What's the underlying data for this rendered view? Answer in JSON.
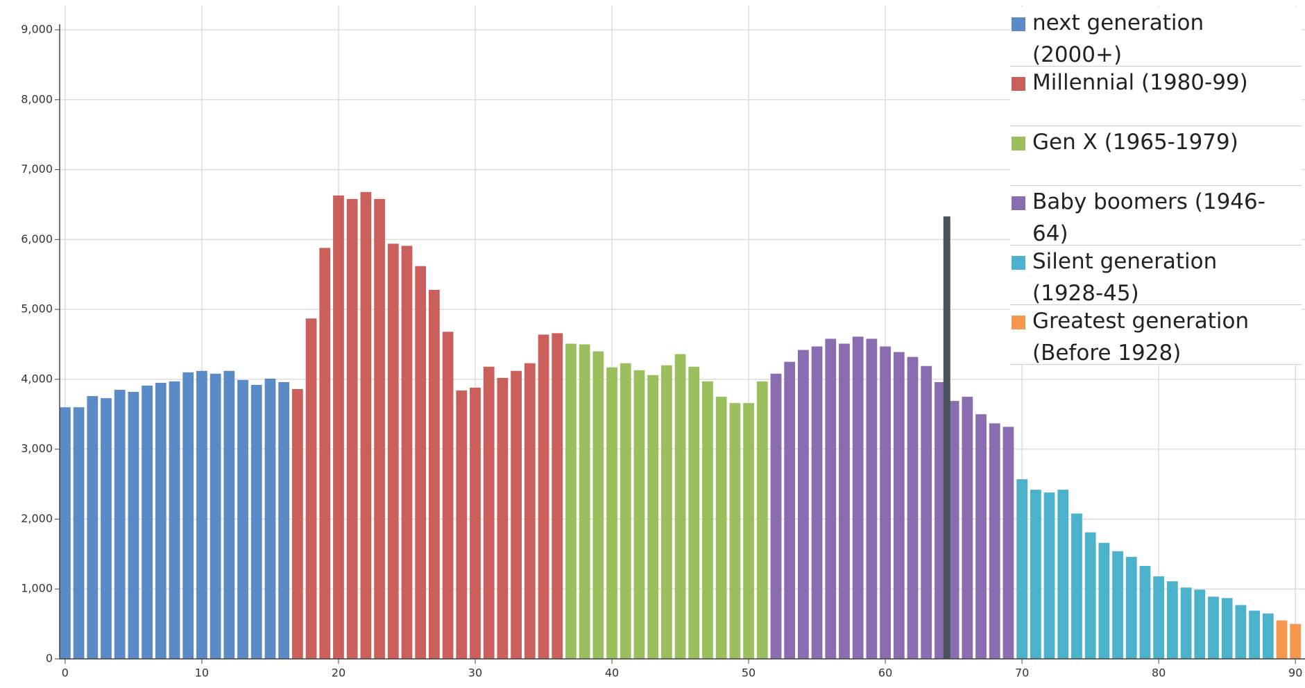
{
  "chart_data": {
    "type": "bar",
    "xlim": [
      -0.4,
      90.7
    ],
    "xticks": [
      0,
      10,
      20,
      30,
      40,
      50,
      60,
      70,
      80,
      90
    ],
    "ylim": [
      0,
      9000
    ],
    "yticks": [
      0,
      {
        "value": 1000,
        "label": "1,000"
      },
      {
        "value": 2000,
        "label": "2,000"
      },
      {
        "value": 3000,
        "label": "3,000"
      },
      {
        "value": 4000,
        "label": "4,000"
      },
      {
        "value": 5000,
        "label": "5,000"
      },
      {
        "value": 6000,
        "label": "6,000"
      },
      {
        "value": 7000,
        "label": "7,000"
      },
      {
        "value": 8000,
        "label": "8,000"
      },
      {
        "value": 9000,
        "label": "9,000"
      }
    ],
    "grid": true,
    "series": [
      {
        "name": "next generation (2000+)",
        "color": "#5b8bc6",
        "x": [
          0,
          1,
          2,
          3,
          4,
          5,
          6,
          7,
          8,
          9,
          10,
          11,
          12,
          13,
          14,
          15,
          16
        ],
        "values": [
          3600,
          3600,
          3760,
          3730,
          3850,
          3820,
          3910,
          3950,
          3970,
          4100,
          4120,
          4080,
          4120,
          3990,
          3920,
          4010,
          3960
        ]
      },
      {
        "name": "Millennial (1980-99)",
        "color": "#cb5f5c",
        "x": [
          17,
          18,
          19,
          20,
          21,
          22,
          23,
          24,
          25,
          26,
          27,
          28,
          29,
          30,
          31,
          32,
          33,
          34,
          35,
          36
        ],
        "values": [
          3860,
          4870,
          5880,
          6630,
          6580,
          6680,
          6580,
          5940,
          5910,
          5620,
          5280,
          4680,
          3840,
          3880,
          4180,
          4020,
          4120,
          4230,
          4640,
          4660
        ]
      },
      {
        "name": "Gen X (1965-1979)",
        "color": "#9cbf5e",
        "x": [
          37,
          38,
          39,
          40,
          41,
          42,
          43,
          44,
          45,
          46,
          47,
          48,
          49,
          50,
          51
        ],
        "values": [
          4510,
          4500,
          4400,
          4170,
          4230,
          4130,
          4060,
          4200,
          4360,
          4180,
          3970,
          3750,
          3660,
          3660,
          3970
        ]
      },
      {
        "name": "Baby boomers (1946-64)",
        "color": "#8a6db0",
        "x": [
          52,
          53,
          54,
          55,
          56,
          57,
          58,
          59,
          60,
          61,
          62,
          63,
          64,
          65,
          66,
          67,
          68,
          69
        ],
        "values": [
          4080,
          4250,
          4420,
          4470,
          4580,
          4510,
          4610,
          4580,
          4470,
          4390,
          4320,
          4190,
          3960,
          3690,
          3750,
          3500,
          3370,
          3320
        ]
      },
      {
        "name": "Silent generation (1928-45)",
        "color": "#4cb1cb",
        "x": [
          70,
          71,
          72,
          73,
          74,
          75,
          76,
          77,
          78,
          79,
          80,
          81,
          82,
          83,
          84,
          85,
          86,
          87,
          88
        ],
        "values": [
          2570,
          2420,
          2380,
          2420,
          2080,
          1810,
          1660,
          1540,
          1460,
          1330,
          1180,
          1110,
          1020,
          990,
          890,
          870,
          770,
          690,
          650
        ]
      },
      {
        "name": "Greatest generation (Before 1928)",
        "color": "#f7974d",
        "x": [
          89,
          90
        ],
        "values": [
          550,
          500
        ]
      }
    ],
    "marker": {
      "x": 64.5,
      "value": 6330,
      "color": "#4a525b"
    }
  }
}
